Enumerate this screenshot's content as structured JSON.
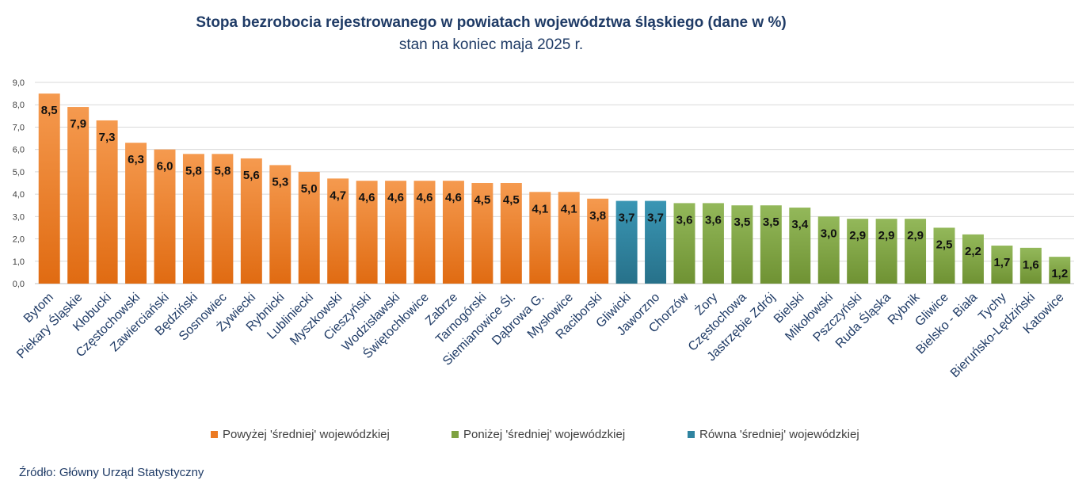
{
  "chart_data": {
    "type": "bar",
    "title": "Stopa bezrobocia rejestrowanego w powiatach województwa śląskiego (dane w %)",
    "subtitle": "stan na koniec maja 2025 r.",
    "categories": [
      "Bytom",
      "Piekary Śląskie",
      "Kłobucki",
      "Częstochowski",
      "Zawierciański",
      "Będziński",
      "Sosnowiec",
      "Żywiecki",
      "Rybnicki",
      "Lubliniecki",
      "Myszkowski",
      "Cieszyński",
      "Wodzisławski",
      "Świętochłowice",
      "Zabrze",
      "Tarnogórski",
      "Siemianowice Śl.",
      "Dąbrowa G.",
      "Mysłowice",
      "Raciborski",
      "Gliwicki",
      "Jaworzno",
      "Chorzów",
      "Żory",
      "Częstochowa",
      "Jastrzębie Zdrój",
      "Bielski",
      "Mikołowski",
      "Pszczyński",
      "Ruda Śląska",
      "Rybnik",
      "Gliwice",
      "Bielsko - Biała",
      "Tychy",
      "Bieruńsko-Lędziński",
      "Katowice"
    ],
    "values": [
      8.5,
      7.9,
      7.3,
      6.3,
      6.0,
      5.8,
      5.8,
      5.6,
      5.3,
      5.0,
      4.7,
      4.6,
      4.6,
      4.6,
      4.6,
      4.5,
      4.5,
      4.1,
      4.1,
      3.8,
      3.7,
      3.7,
      3.6,
      3.6,
      3.5,
      3.5,
      3.4,
      3.0,
      2.9,
      2.9,
      2.9,
      2.5,
      2.2,
      1.7,
      1.6,
      1.2
    ],
    "value_labels": [
      "8,5",
      "7,9",
      "7,3",
      "6,3",
      "6,0",
      "5,8",
      "5,8",
      "5,6",
      "5,3",
      "5,0",
      "4,7",
      "4,6",
      "4,6",
      "4,6",
      "4,6",
      "4,5",
      "4,5",
      "4,1",
      "4,1",
      "3,8",
      "3,7",
      "3,7",
      "3,6",
      "3,6",
      "3,5",
      "3,5",
      "3,4",
      "3,0",
      "2,9",
      "2,9",
      "2,9",
      "2,5",
      "2,2",
      "1,7",
      "1,6",
      "1,2"
    ],
    "groups": [
      "above",
      "above",
      "above",
      "above",
      "above",
      "above",
      "above",
      "above",
      "above",
      "above",
      "above",
      "above",
      "above",
      "above",
      "above",
      "above",
      "above",
      "above",
      "above",
      "above",
      "equal",
      "equal",
      "below",
      "below",
      "below",
      "below",
      "below",
      "below",
      "below",
      "below",
      "below",
      "below",
      "below",
      "below",
      "below",
      "below"
    ],
    "ylim": [
      0,
      9
    ],
    "yticks": [
      "0,0",
      "1,0",
      "2,0",
      "3,0",
      "4,0",
      "5,0",
      "6,0",
      "7,0",
      "8,0",
      "9,0"
    ],
    "grid": true,
    "legend_position": "bottom",
    "legend": [
      {
        "group": "above",
        "label": "Powyżej 'średniej' wojewódzkiej"
      },
      {
        "group": "below",
        "label": "Poniżej 'średniej' wojewódzkiej"
      },
      {
        "group": "equal",
        "label": "Równa 'średniej' wojewódzkiej"
      }
    ],
    "colors": {
      "above": "#ec7a22",
      "below": "#7ea241",
      "equal": "#2f84a0"
    },
    "source": "Źródło: Główny Urząd Statystyczny"
  }
}
